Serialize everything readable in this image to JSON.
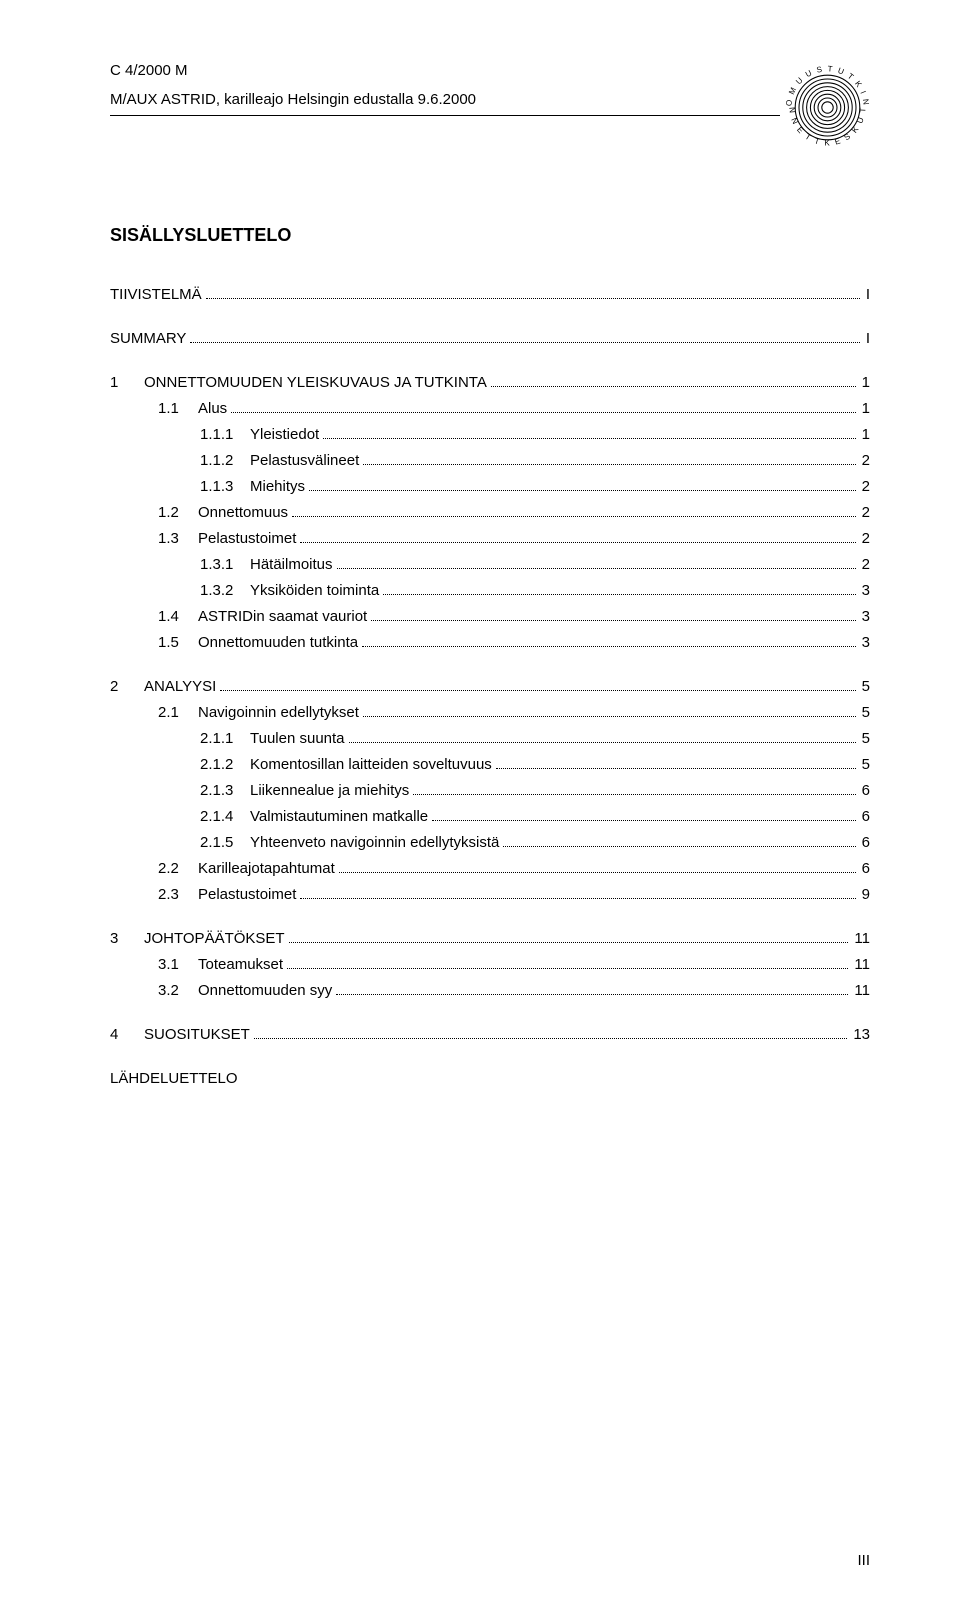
{
  "header": {
    "doc_ref": "C 4/2000 M",
    "subtitle": "M/AUX ASTRID, karilleajo Helsingin edustalla 9.6.2000"
  },
  "toc_title": "SISÄLLYSLUETTELO",
  "toc": [
    {
      "level": 0,
      "num": "",
      "label": "TIIVISTELMÄ",
      "page": "I",
      "nonum": true
    },
    {
      "gap": true
    },
    {
      "level": 0,
      "num": "",
      "label": "SUMMARY",
      "page": "I",
      "nonum": true
    },
    {
      "gap": true
    },
    {
      "level": 1,
      "num": "1",
      "label": "ONNETTOMUUDEN YLEISKUVAUS JA TUTKINTA",
      "page": "1"
    },
    {
      "level": 2,
      "num": "1.1",
      "label": "Alus",
      "page": "1"
    },
    {
      "level": 3,
      "num": "1.1.1",
      "label": "Yleistiedot",
      "page": "1"
    },
    {
      "level": 3,
      "num": "1.1.2",
      "label": "Pelastusvälineet",
      "page": "2"
    },
    {
      "level": 3,
      "num": "1.1.3",
      "label": "Miehitys",
      "page": "2"
    },
    {
      "level": 2,
      "num": "1.2",
      "label": "Onnettomuus",
      "page": "2"
    },
    {
      "level": 2,
      "num": "1.3",
      "label": "Pelastustoimet",
      "page": "2"
    },
    {
      "level": 3,
      "num": "1.3.1",
      "label": "Hätäilmoitus",
      "page": "2"
    },
    {
      "level": 3,
      "num": "1.3.2",
      "label": "Yksiköiden toiminta",
      "page": "3"
    },
    {
      "level": 2,
      "num": "1.4",
      "label": "ASTRIDin saamat vauriot",
      "page": "3"
    },
    {
      "level": 2,
      "num": "1.5",
      "label": "Onnettomuuden tutkinta",
      "page": "3"
    },
    {
      "gap": true
    },
    {
      "level": 1,
      "num": "2",
      "label": "ANALYYSI",
      "page": "5"
    },
    {
      "level": 2,
      "num": "2.1",
      "label": "Navigoinnin edellytykset",
      "page": "5"
    },
    {
      "level": 3,
      "num": "2.1.1",
      "label": "Tuulen suunta",
      "page": "5"
    },
    {
      "level": 3,
      "num": "2.1.2",
      "label": "Komentosillan laitteiden soveltuvuus",
      "page": "5"
    },
    {
      "level": 3,
      "num": "2.1.3",
      "label": "Liikennealue ja miehitys",
      "page": "6"
    },
    {
      "level": 3,
      "num": "2.1.4",
      "label": "Valmistautuminen matkalle",
      "page": "6"
    },
    {
      "level": 3,
      "num": "2.1.5",
      "label": "Yhteenveto navigoinnin edellytyksistä",
      "page": "6"
    },
    {
      "level": 2,
      "num": "2.2",
      "label": "Karilleajotapahtumat",
      "page": "6"
    },
    {
      "level": 2,
      "num": "2.3",
      "label": "Pelastustoimet",
      "page": "9"
    },
    {
      "gap": true
    },
    {
      "level": 1,
      "num": "3",
      "label": "JOHTOPÄÄTÖKSET",
      "page": "11"
    },
    {
      "level": 2,
      "num": "3.1",
      "label": "Toteamukset",
      "page": "11"
    },
    {
      "level": 2,
      "num": "3.2",
      "label": "Onnettomuuden syy",
      "page": "11"
    },
    {
      "gap": true
    },
    {
      "level": 1,
      "num": "4",
      "label": "SUOSITUKSET",
      "page": "13"
    },
    {
      "gap": true
    },
    {
      "level": 0,
      "num": "",
      "label": "LÄHDELUETTELO",
      "page": "",
      "nonum": true,
      "nodots": true
    }
  ],
  "page_number": "III",
  "colors": {
    "text": "#000000",
    "background": "#ffffff"
  }
}
